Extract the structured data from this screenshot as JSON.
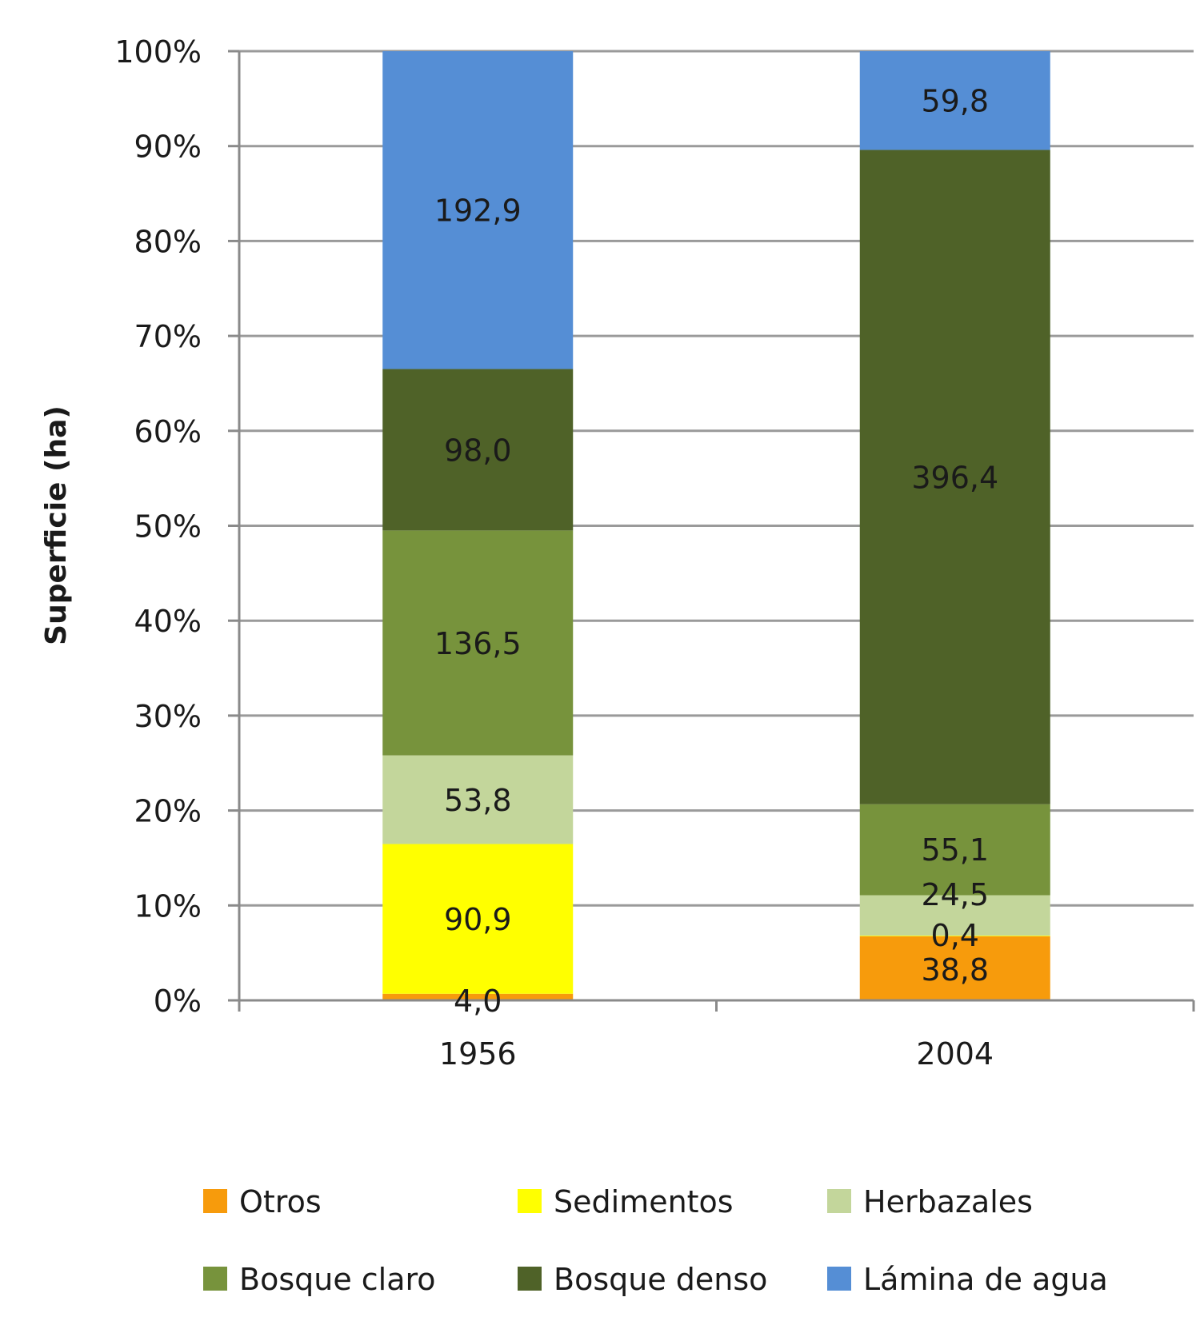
{
  "chart_data": {
    "type": "bar",
    "stacked": "percent",
    "title": "",
    "xlabel": "",
    "ylabel": "Superficie (ha)",
    "ylim": [
      0,
      100
    ],
    "yticks": [
      "0%",
      "10%",
      "20%",
      "30%",
      "40%",
      "50%",
      "60%",
      "70%",
      "80%",
      "90%",
      "100%"
    ],
    "categories": [
      "1956",
      "2004"
    ],
    "series": [
      {
        "name": "Otros",
        "color": "#F79B0C",
        "values": [
          4.0,
          38.8
        ],
        "labels": [
          "4,0",
          "38,8"
        ]
      },
      {
        "name": "Sedimentos",
        "color": "#FFFF00",
        "values": [
          90.9,
          0.4
        ],
        "labels": [
          "90,9",
          "0,4"
        ]
      },
      {
        "name": "Herbazales",
        "color": "#C3D69B",
        "values": [
          53.8,
          24.5
        ],
        "labels": [
          "53,8",
          "24,5"
        ]
      },
      {
        "name": "Bosque claro",
        "color": "#77933C",
        "values": [
          136.5,
          55.1
        ],
        "labels": [
          "136,5",
          "55,1"
        ]
      },
      {
        "name": "Bosque denso",
        "color": "#4F6228",
        "values": [
          98.0,
          396.4
        ],
        "labels": [
          "98,0",
          "396,4"
        ]
      },
      {
        "name": "Lámina de agua",
        "color": "#558ED5",
        "values": [
          192.9,
          59.8
        ],
        "labels": [
          "192,9",
          "59,8"
        ]
      }
    ],
    "grid": true,
    "legend_position": "bottom"
  }
}
